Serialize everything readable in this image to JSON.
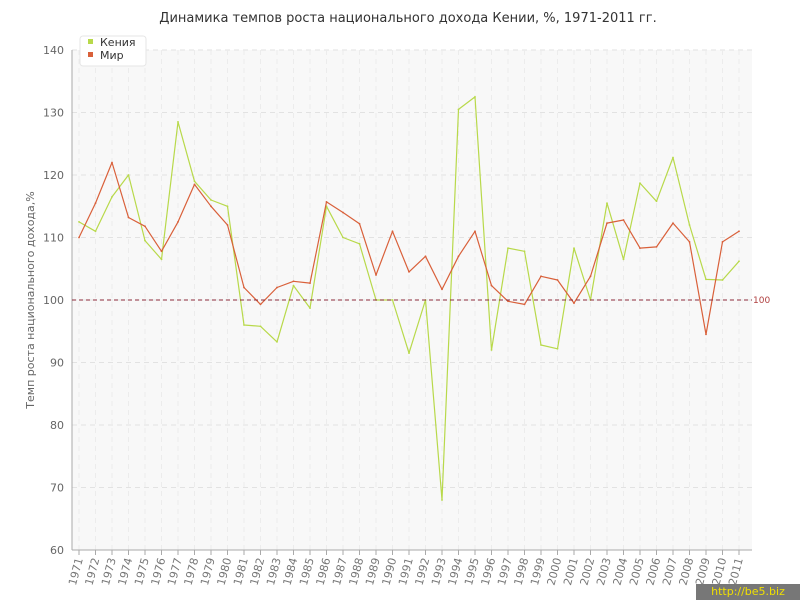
{
  "chart_data": {
    "type": "line",
    "title": "Динамика темпов роста национального дохода Кении, %, 1971-2011 гг.",
    "ylabel": "Темп роста национального дохода,%",
    "xlabel": "",
    "ylim": [
      60,
      140
    ],
    "y_ticks": [
      60,
      70,
      80,
      90,
      100,
      110,
      120,
      130,
      140
    ],
    "grid": true,
    "legend_position": "top-left",
    "reference_line": {
      "value": 100,
      "label": "100",
      "color": "#8b2a3a"
    },
    "x": [
      "1971",
      "1972",
      "1973",
      "1974",
      "1975",
      "1976",
      "1977",
      "1978",
      "1979",
      "1980",
      "1981",
      "1982",
      "1983",
      "1984",
      "1985",
      "1986",
      "1987",
      "1988",
      "1989",
      "1990",
      "1991",
      "1992",
      "1993",
      "1994",
      "1995",
      "1996",
      "1997",
      "1998",
      "1999",
      "2000",
      "2001",
      "2002",
      "2003",
      "2004",
      "2005",
      "2006",
      "2007",
      "2008",
      "2009",
      "2010",
      "2011"
    ],
    "series": [
      {
        "name": "Кения",
        "color": "#b8d94a",
        "values": [
          112.5,
          111.0,
          116.5,
          120.0,
          109.5,
          106.5,
          128.5,
          119.0,
          116.0,
          115.0,
          96.0,
          95.8,
          93.3,
          102.3,
          98.7,
          115.0,
          110.0,
          109.0,
          100.0,
          100.0,
          91.5,
          100.0,
          68.0,
          130.5,
          132.5,
          92.0,
          108.3,
          107.8,
          92.8,
          92.2,
          108.3,
          100.0,
          115.5,
          106.5,
          118.7,
          115.8,
          122.8,
          112.0,
          103.3,
          103.2,
          106.2
        ]
      },
      {
        "name": "Мир",
        "color": "#d9603a",
        "values": [
          110.0,
          115.5,
          122.0,
          113.2,
          111.8,
          107.8,
          112.5,
          118.5,
          115.0,
          112.0,
          102.0,
          99.3,
          102.0,
          103.0,
          102.7,
          115.7,
          114.0,
          112.2,
          104.0,
          111.0,
          104.5,
          107.0,
          101.7,
          107.0,
          111.0,
          102.3,
          99.8,
          99.3,
          103.8,
          103.2,
          99.5,
          103.8,
          112.3,
          112.8,
          108.3,
          108.5,
          112.3,
          109.3,
          94.5,
          109.3,
          111.0
        ]
      }
    ]
  },
  "watermark": "http://be5.biz"
}
